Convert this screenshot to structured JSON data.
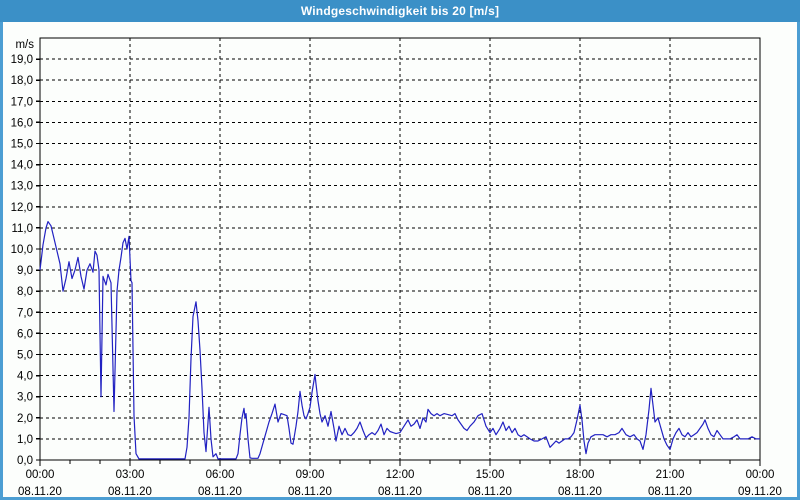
{
  "window": {
    "title": "Windgeschwindigkeit bis 20 [m/s]"
  },
  "colors": {
    "titlebar_bg": "#3b90c7",
    "outer_border": "#4c9ed3",
    "page_bg": "#fcfefc",
    "plot_bg": "#ffffff",
    "frame": "#000000",
    "grid": "#000000",
    "tick_text": "#000000",
    "line": "#2222c2"
  },
  "chart_data": {
    "type": "line",
    "title": "Windgeschwindigkeit bis 20 [m/s]",
    "ylabel": "m/s",
    "ylim": [
      0,
      20
    ],
    "ytick_step": 1,
    "ytick_labels_top_to_bottom": [
      "19,0",
      "18,0",
      "17,0",
      "16,0",
      "15,0",
      "14,0",
      "13,0",
      "12,0",
      "11,0",
      "10,0",
      "9,0",
      "8,0",
      "7,0",
      "6,0",
      "5,0",
      "4,0",
      "3,0",
      "2,0",
      "1,0",
      "0,0"
    ],
    "grid": "dashed",
    "legend": "none",
    "x_unit": "minutes from 00:00 08.11.20",
    "xlim": [
      0,
      1440
    ],
    "x_minor_tick_minutes": 60,
    "x_major_tick_minutes": 180,
    "x_ticks": [
      {
        "minutes": 0,
        "time": "00:00",
        "date": "08.11.20"
      },
      {
        "minutes": 180,
        "time": "03:00",
        "date": "08.11.20"
      },
      {
        "minutes": 360,
        "time": "06:00",
        "date": "08.11.20"
      },
      {
        "minutes": 540,
        "time": "09:00",
        "date": "08.11.20"
      },
      {
        "minutes": 720,
        "time": "12:00",
        "date": "08.11.20"
      },
      {
        "minutes": 900,
        "time": "15:00",
        "date": "08.11.20"
      },
      {
        "minutes": 1080,
        "time": "18:00",
        "date": "08.11.20"
      },
      {
        "minutes": 1260,
        "time": "21:00",
        "date": "08.11.20"
      },
      {
        "minutes": 1440,
        "time": "00:00",
        "date": "09.11.20"
      }
    ],
    "series": [
      {
        "name": "Windgeschwindigkeit",
        "points": [
          [
            0,
            9.0
          ],
          [
            6,
            10.2
          ],
          [
            12,
            11.0
          ],
          [
            16,
            11.3
          ],
          [
            22,
            11.1
          ],
          [
            28,
            10.5
          ],
          [
            34,
            9.9
          ],
          [
            40,
            9.3
          ],
          [
            46,
            8.0
          ],
          [
            52,
            8.6
          ],
          [
            58,
            9.4
          ],
          [
            64,
            8.6
          ],
          [
            70,
            9.0
          ],
          [
            76,
            9.6
          ],
          [
            82,
            8.7
          ],
          [
            88,
            8.1
          ],
          [
            94,
            9.0
          ],
          [
            100,
            9.3
          ],
          [
            106,
            8.9
          ],
          [
            110,
            9.9
          ],
          [
            114,
            9.7
          ],
          [
            118,
            9.0
          ],
          [
            122,
            3.0
          ],
          [
            126,
            8.7
          ],
          [
            132,
            8.3
          ],
          [
            136,
            8.8
          ],
          [
            142,
            8.4
          ],
          [
            148,
            2.3
          ],
          [
            154,
            8.0
          ],
          [
            158,
            9.0
          ],
          [
            162,
            9.6
          ],
          [
            166,
            10.3
          ],
          [
            170,
            10.5
          ],
          [
            174,
            10.0
          ],
          [
            178,
            10.6
          ],
          [
            182,
            8.5
          ],
          [
            184,
            8.4
          ],
          [
            188,
            2.1
          ],
          [
            192,
            0.3
          ],
          [
            198,
            0.05
          ],
          [
            210,
            0.05
          ],
          [
            230,
            0.05
          ],
          [
            250,
            0.05
          ],
          [
            270,
            0.05
          ],
          [
            290,
            0.05
          ],
          [
            294,
            0.6
          ],
          [
            298,
            2.0
          ],
          [
            302,
            4.8
          ],
          [
            306,
            6.8
          ],
          [
            312,
            7.5
          ],
          [
            316,
            6.6
          ],
          [
            320,
            5.2
          ],
          [
            324,
            3.4
          ],
          [
            328,
            1.3
          ],
          [
            332,
            0.4
          ],
          [
            338,
            2.5
          ],
          [
            342,
            1.0
          ],
          [
            346,
            0.15
          ],
          [
            352,
            0.3
          ],
          [
            356,
            0.05
          ],
          [
            364,
            0.05
          ],
          [
            376,
            0.05
          ],
          [
            384,
            0.05
          ],
          [
            392,
            0.05
          ],
          [
            396,
            0.3
          ],
          [
            400,
            1.2
          ],
          [
            404,
            2.0
          ],
          [
            408,
            2.45
          ],
          [
            410,
            2.0
          ],
          [
            412,
            2.2
          ],
          [
            416,
            1.0
          ],
          [
            420,
            0.1
          ],
          [
            424,
            0.08
          ],
          [
            436,
            0.08
          ],
          [
            440,
            0.3
          ],
          [
            446,
            0.8
          ],
          [
            452,
            1.3
          ],
          [
            458,
            1.8
          ],
          [
            464,
            2.2
          ],
          [
            470,
            2.65
          ],
          [
            476,
            1.8
          ],
          [
            482,
            2.2
          ],
          [
            488,
            2.15
          ],
          [
            494,
            2.1
          ],
          [
            498,
            1.5
          ],
          [
            502,
            0.8
          ],
          [
            506,
            0.75
          ],
          [
            512,
            1.6
          ],
          [
            516,
            2.3
          ],
          [
            520,
            3.25
          ],
          [
            524,
            2.6
          ],
          [
            528,
            2.1
          ],
          [
            532,
            1.95
          ],
          [
            536,
            2.2
          ],
          [
            540,
            2.5
          ],
          [
            544,
            3.2
          ],
          [
            550,
            4.05
          ],
          [
            552,
            3.6
          ],
          [
            556,
            2.8
          ],
          [
            560,
            2.2
          ],
          [
            564,
            1.8
          ],
          [
            570,
            2.1
          ],
          [
            576,
            1.6
          ],
          [
            582,
            2.3
          ],
          [
            588,
            1.5
          ],
          [
            592,
            0.9
          ],
          [
            598,
            1.6
          ],
          [
            604,
            1.2
          ],
          [
            610,
            1.5
          ],
          [
            616,
            1.2
          ],
          [
            622,
            1.15
          ],
          [
            628,
            1.3
          ],
          [
            634,
            1.5
          ],
          [
            640,
            1.8
          ],
          [
            646,
            1.4
          ],
          [
            652,
            1.05
          ],
          [
            658,
            1.2
          ],
          [
            664,
            1.3
          ],
          [
            670,
            1.2
          ],
          [
            676,
            1.4
          ],
          [
            682,
            1.7
          ],
          [
            688,
            1.2
          ],
          [
            694,
            1.5
          ],
          [
            700,
            1.35
          ],
          [
            706,
            1.3
          ],
          [
            712,
            1.25
          ],
          [
            720,
            1.3
          ],
          [
            728,
            1.6
          ],
          [
            736,
            1.9
          ],
          [
            742,
            1.6
          ],
          [
            748,
            1.7
          ],
          [
            754,
            1.9
          ],
          [
            760,
            1.5
          ],
          [
            766,
            2.0
          ],
          [
            772,
            1.8
          ],
          [
            776,
            2.4
          ],
          [
            782,
            2.2
          ],
          [
            788,
            2.1
          ],
          [
            794,
            2.2
          ],
          [
            800,
            2.1
          ],
          [
            808,
            2.2
          ],
          [
            816,
            2.15
          ],
          [
            824,
            2.1
          ],
          [
            830,
            2.2
          ],
          [
            836,
            1.9
          ],
          [
            842,
            1.7
          ],
          [
            848,
            1.5
          ],
          [
            854,
            1.4
          ],
          [
            860,
            1.6
          ],
          [
            868,
            1.8
          ],
          [
            876,
            2.1
          ],
          [
            884,
            2.2
          ],
          [
            892,
            1.6
          ],
          [
            900,
            1.3
          ],
          [
            906,
            1.5
          ],
          [
            912,
            1.2
          ],
          [
            920,
            1.5
          ],
          [
            926,
            1.8
          ],
          [
            932,
            1.4
          ],
          [
            938,
            1.6
          ],
          [
            944,
            1.3
          ],
          [
            950,
            1.5
          ],
          [
            956,
            1.2
          ],
          [
            962,
            1.1
          ],
          [
            968,
            1.2
          ],
          [
            974,
            1.1
          ],
          [
            980,
            1.0
          ],
          [
            988,
            0.9
          ],
          [
            996,
            0.9
          ],
          [
            1004,
            1.0
          ],
          [
            1012,
            1.1
          ],
          [
            1020,
            0.6
          ],
          [
            1026,
            0.75
          ],
          [
            1032,
            0.9
          ],
          [
            1038,
            0.8
          ],
          [
            1044,
            0.9
          ],
          [
            1050,
            1.0
          ],
          [
            1056,
            1.0
          ],
          [
            1062,
            1.1
          ],
          [
            1068,
            1.3
          ],
          [
            1074,
            1.9
          ],
          [
            1080,
            2.6
          ],
          [
            1084,
            1.9
          ],
          [
            1088,
            0.9
          ],
          [
            1092,
            0.3
          ],
          [
            1096,
            0.8
          ],
          [
            1102,
            1.1
          ],
          [
            1110,
            1.2
          ],
          [
            1118,
            1.2
          ],
          [
            1126,
            1.2
          ],
          [
            1134,
            1.1
          ],
          [
            1142,
            1.2
          ],
          [
            1150,
            1.2
          ],
          [
            1158,
            1.3
          ],
          [
            1164,
            1.5
          ],
          [
            1172,
            1.2
          ],
          [
            1180,
            1.1
          ],
          [
            1188,
            1.2
          ],
          [
            1194,
            1.0
          ],
          [
            1200,
            0.9
          ],
          [
            1206,
            0.5
          ],
          [
            1212,
            1.2
          ],
          [
            1218,
            2.4
          ],
          [
            1222,
            3.4
          ],
          [
            1226,
            2.6
          ],
          [
            1230,
            1.8
          ],
          [
            1236,
            2.0
          ],
          [
            1242,
            1.5
          ],
          [
            1248,
            1.0
          ],
          [
            1254,
            0.7
          ],
          [
            1260,
            0.5
          ],
          [
            1266,
            1.0
          ],
          [
            1272,
            1.3
          ],
          [
            1278,
            1.5
          ],
          [
            1284,
            1.2
          ],
          [
            1290,
            1.1
          ],
          [
            1296,
            1.3
          ],
          [
            1302,
            1.1
          ],
          [
            1308,
            1.2
          ],
          [
            1314,
            1.3
          ],
          [
            1320,
            1.5
          ],
          [
            1326,
            1.7
          ],
          [
            1330,
            1.9
          ],
          [
            1336,
            1.5
          ],
          [
            1342,
            1.2
          ],
          [
            1348,
            1.1
          ],
          [
            1354,
            1.4
          ],
          [
            1360,
            1.2
          ],
          [
            1366,
            1.0
          ],
          [
            1372,
            1.0
          ],
          [
            1380,
            1.0
          ],
          [
            1388,
            1.1
          ],
          [
            1394,
            1.2
          ],
          [
            1400,
            1.0
          ],
          [
            1408,
            1.0
          ],
          [
            1416,
            1.0
          ],
          [
            1424,
            1.1
          ],
          [
            1432,
            1.0
          ],
          [
            1440,
            1.0
          ]
        ]
      }
    ]
  }
}
